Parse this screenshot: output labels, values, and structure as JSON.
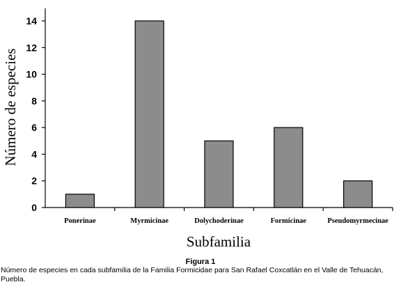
{
  "chart_data": {
    "type": "bar",
    "categories": [
      "Ponerinae",
      "Myrmicinae",
      "Dolychoderinae",
      "Formicinae",
      "Pseudomyrmecinae"
    ],
    "values": [
      1,
      14,
      5,
      6,
      2
    ],
    "xlabel": "Subfamilia",
    "ylabel": "Número de especies",
    "ylim": [
      0,
      15
    ],
    "yticks": [
      0,
      2,
      4,
      6,
      8,
      10,
      12,
      14
    ],
    "bar_color": "#8c8c8c",
    "grid": false
  },
  "caption": {
    "title": "Figura 1",
    "text": "Número de especies en cada subfamilia de la Familia Formicidae para San Rafael Coxcatlán en el Valle de Tehuacán, Puebla."
  }
}
